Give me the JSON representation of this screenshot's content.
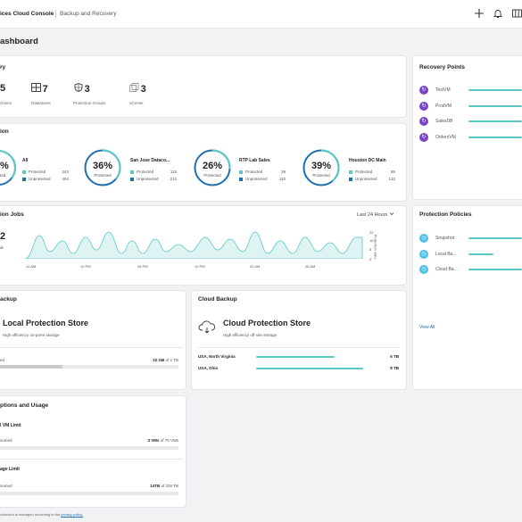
{
  "header": {
    "brand": "ices Cloud Console",
    "breadcrumb": "Backup and Recovery",
    "icons": [
      "plus-icon",
      "bell-icon",
      "grid-icon"
    ]
  },
  "page_title": "ashboard",
  "inventory": {
    "title": "ry",
    "items": [
      {
        "value": "5",
        "label": "chines"
      },
      {
        "value": "7",
        "label": "Datastores",
        "icon": "datastore-icon"
      },
      {
        "value": "3",
        "label": "Protection Groups",
        "icon": "shield-icon"
      },
      {
        "value": "3",
        "label": "vCenter",
        "icon": "vcenter-icon"
      }
    ]
  },
  "protection": {
    "title": "ion",
    "groups": [
      {
        "name": "All",
        "percent": "%",
        "sub": "ted",
        "protected": "243",
        "unprotected": "454"
      },
      {
        "name": "San Jose Dataco...",
        "percent": "36%",
        "sub": "Protected",
        "protected": "119",
        "unprotected": "212",
        "fraction": 0.36
      },
      {
        "name": "RTP Lab Sales",
        "percent": "26%",
        "sub": "Protected",
        "protected": "39",
        "unprotected": "110",
        "fraction": 0.26
      },
      {
        "name": "Houston DC Main",
        "percent": "39%",
        "sub": "Protected",
        "protected": "85",
        "unprotected": "132",
        "fraction": 0.39
      }
    ],
    "legend_protected": "Protected",
    "legend_unprotected": "Unprotected",
    "colors": {
      "protected": "#5bc8c6",
      "unprotected": "#1f6fb2"
    }
  },
  "jobs": {
    "title": "ion Jobs",
    "range": "Last 24 Hours",
    "big_value": "2",
    "big_label": "al",
    "y_axis_label": "Protection Jobs",
    "y_ticks": [
      "22",
      "16",
      "8",
      "0"
    ],
    "x_ticks": [
      "10 AM",
      "10 PM",
      "06 PM",
      "10 PM",
      "02 AM",
      "06 AM"
    ]
  },
  "local_backup": {
    "title": "ackup",
    "store_name": "Local Protection Store",
    "store_desc": "High efficiency on-prem storage",
    "used_label": "ed",
    "used_value": "22 GB",
    "used_of": " of 1 TB",
    "fill_fraction": 0.35
  },
  "cloud_backup": {
    "title": "Cloud Backup",
    "store_name": "Cloud Protection Store",
    "store_desc": "High efficiency off-site storage",
    "regions": [
      {
        "name": "USA, North Virginia",
        "value": "6 TB"
      },
      {
        "name": "USA, Ohio",
        "value": "8 TB"
      }
    ]
  },
  "subscriptions": {
    "title": "ptions and Usage",
    "vm_limit_title": "l VM Limit",
    "vm_consumed_label": "sumed",
    "vm_consumed_value": "3 VMs",
    "vm_consumed_of": " of 75 VMs",
    "storage_limit_title": "age Limit",
    "storage_consumed_label": "sumed",
    "storage_consumed_value": "14TB",
    "storage_consumed_of": " of 200 TB"
  },
  "recovery_points": {
    "title": "Recovery Points",
    "items": [
      {
        "label": "TestVM"
      },
      {
        "label": "ProdVM"
      },
      {
        "label": "SalesDB"
      },
      {
        "label": "OrdersVM"
      }
    ]
  },
  "policies": {
    "title": "Protection Policies",
    "items": [
      {
        "label": "Snapshot"
      },
      {
        "label": "Local Ba..."
      },
      {
        "label": "Cloud Ba..."
      }
    ],
    "view_all": "View All"
  },
  "footer": {
    "text": "collected is managed according to the ",
    "link": "privacy policy."
  }
}
